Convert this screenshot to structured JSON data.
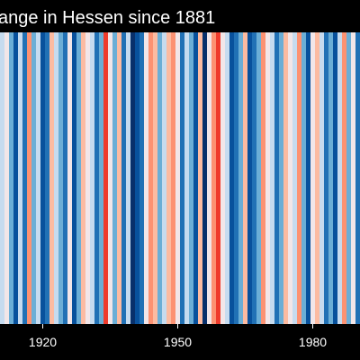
{
  "chart_data": {
    "type": "heatmap",
    "title": "ange in Hessen since 1881",
    "x_ticks": [
      "1920",
      "1950",
      "1980"
    ],
    "xlim": [
      1911,
      1990
    ],
    "color_scale": [
      "#08306b",
      "#08519c",
      "#2171b5",
      "#6baed6",
      "#c6dbef",
      "#f2e6e8",
      "#fcbba1",
      "#fc9272",
      "#ef3b2c"
    ],
    "x": [
      1911,
      1912,
      1913,
      1914,
      1915,
      1916,
      1917,
      1918,
      1919,
      1920,
      1921,
      1922,
      1923,
      1924,
      1925,
      1926,
      1927,
      1928,
      1929,
      1930,
      1931,
      1932,
      1933,
      1934,
      1935,
      1936,
      1937,
      1938,
      1939,
      1940,
      1941,
      1942,
      1943,
      1944,
      1945,
      1946,
      1947,
      1948,
      1949,
      1950,
      1951,
      1952,
      1953,
      1954,
      1955,
      1956,
      1957,
      1958,
      1959,
      1960,
      1961,
      1962,
      1963,
      1964,
      1965,
      1966,
      1967,
      1968,
      1969,
      1970,
      1971,
      1972,
      1973,
      1974,
      1975,
      1976,
      1977,
      1978,
      1979,
      1980,
      1981,
      1982,
      1983,
      1984,
      1985,
      1986,
      1987,
      1988,
      1989,
      1990
    ],
    "values": [
      4,
      5,
      3,
      1,
      4,
      2,
      7,
      3,
      4,
      1,
      2,
      6,
      4,
      3,
      2,
      5,
      1,
      3,
      6,
      5,
      4,
      2,
      3,
      8,
      5,
      3,
      6,
      2,
      4,
      0,
      1,
      2,
      5,
      7,
      6,
      3,
      4,
      6,
      7,
      5,
      2,
      4,
      3,
      1,
      6,
      0,
      5,
      7,
      8,
      5,
      4,
      1,
      2,
      3,
      6,
      1,
      2,
      3,
      7,
      5,
      4,
      2,
      3,
      6,
      5,
      4,
      7,
      3,
      1,
      5,
      6,
      4,
      2,
      3,
      1,
      4,
      7,
      3,
      5,
      2
    ]
  }
}
